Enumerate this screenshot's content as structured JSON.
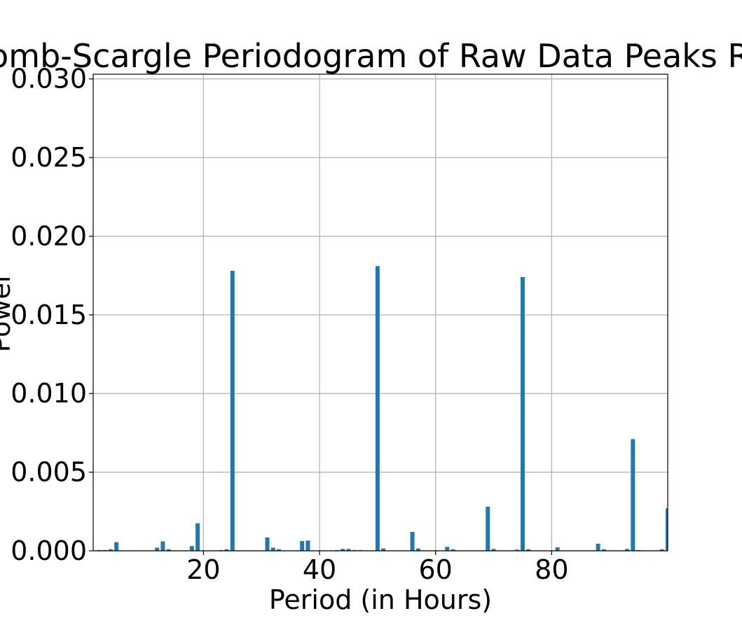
{
  "chart_data": {
    "type": "bar",
    "title": "Lomb-Scargle Periodogram of Raw Data Peaks Run",
    "xlabel": "Period (in Hours)",
    "ylabel": "Power",
    "xlim": [
      1,
      100
    ],
    "ylim": [
      0,
      0.0303
    ],
    "xticks": [
      20,
      40,
      60,
      80
    ],
    "xtick_labels": [
      "20",
      "40",
      "60",
      "80"
    ],
    "yticks": [
      0,
      0.005,
      0.01,
      0.015,
      0.02,
      0.025,
      0.03
    ],
    "ytick_labels": [
      "0.000",
      "0.005",
      "0.010",
      "0.015",
      "0.020",
      "0.025",
      "0.030"
    ],
    "grid": true,
    "bar_width": 0.72,
    "bar_color": "#1f77b4",
    "x": [
      2,
      3,
      4,
      5,
      6,
      7,
      8,
      9,
      10,
      11,
      12,
      13,
      14,
      15,
      16,
      17,
      18,
      19,
      20,
      21,
      22,
      23,
      24,
      25,
      26,
      27,
      28,
      29,
      30,
      31,
      32,
      33,
      34,
      35,
      36,
      37,
      38,
      39,
      40,
      41,
      42,
      43,
      44,
      45,
      46,
      47,
      48,
      49,
      50,
      51,
      52,
      53,
      54,
      55,
      56,
      57,
      58,
      59,
      60,
      61,
      62,
      63,
      64,
      65,
      66,
      67,
      68,
      69,
      70,
      71,
      72,
      73,
      74,
      75,
      76,
      77,
      78,
      79,
      80,
      81,
      82,
      83,
      84,
      85,
      86,
      87,
      88,
      89,
      90,
      91,
      92,
      93,
      94,
      95,
      96,
      97,
      98,
      99,
      100
    ],
    "values": [
      5e-05,
      5e-05,
      0.0001,
      0.00055,
      3e-05,
      3e-05,
      3e-05,
      3e-05,
      3e-05,
      3e-05,
      0.0002,
      0.0006,
      0.0001,
      3e-05,
      3e-05,
      3e-05,
      0.0003,
      0.00175,
      3e-05,
      3e-05,
      3e-05,
      5e-05,
      0.0001,
      0.0178,
      3e-05,
      3e-05,
      3e-05,
      3e-05,
      3e-05,
      0.00085,
      0.0002,
      0.0001,
      3e-05,
      3e-05,
      3e-05,
      0.00062,
      0.00065,
      3e-05,
      3e-05,
      3e-05,
      3e-05,
      5e-05,
      0.00012,
      0.00012,
      5e-05,
      5e-05,
      3e-05,
      3e-05,
      0.0181,
      0.00015,
      3e-05,
      3e-05,
      3e-05,
      3e-05,
      0.0012,
      0.00015,
      3e-05,
      3e-05,
      3e-05,
      3e-05,
      0.00025,
      0.0001,
      3e-05,
      3e-05,
      3e-05,
      3e-05,
      3e-05,
      0.0028,
      0.00012,
      3e-05,
      3e-05,
      3e-05,
      8e-05,
      0.0174,
      0.0001,
      3e-05,
      3e-05,
      3e-05,
      3e-05,
      0.00022,
      3e-05,
      3e-05,
      3e-05,
      3e-05,
      3e-05,
      3e-05,
      0.00045,
      0.0001,
      3e-05,
      3e-05,
      3e-05,
      0.00012,
      0.0071,
      5e-05,
      3e-05,
      3e-05,
      3e-05,
      0.0001,
      0.0027
    ]
  }
}
